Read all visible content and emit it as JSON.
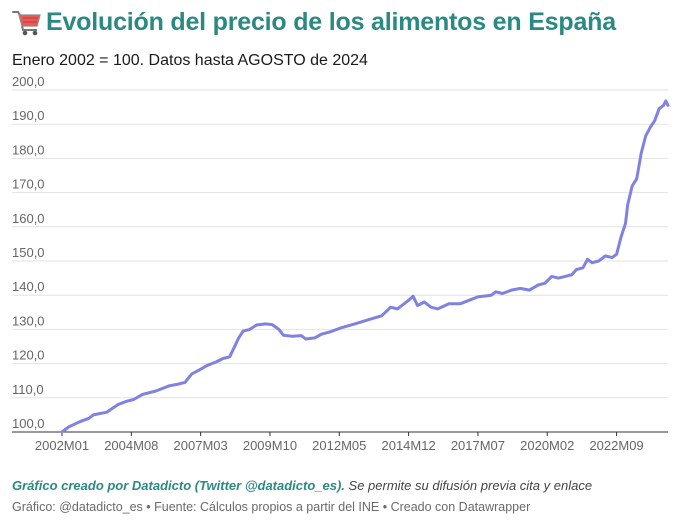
{
  "header": {
    "icon": "shopping-cart-icon",
    "title": "Evolución del precio de los alimentos en España",
    "subtitle": "Enero 2002 = 100. Datos hasta AGOSTO de 2024"
  },
  "credit": {
    "strong": "Gráfico creado por Datadicto (Twitter @datadicto_es).",
    "rest": " Se permite su difusión previa cita y enlace"
  },
  "footer": "Gráfico: @datadicto_es • Fuente: Cálculos propios a partir del INE • Creado con Datawrapper",
  "colors": {
    "line": "#7f82e0",
    "title": "#2a8a82",
    "grid": "#e2e2e2"
  },
  "chart_data": {
    "type": "line",
    "title": "Evolución del precio de los alimentos en España",
    "subtitle": "Enero 2002 = 100. Datos hasta AGOSTO de 2024",
    "ylim": [
      100,
      200
    ],
    "yticks": [
      "100,0",
      "110,0",
      "120,0",
      "130,0",
      "140,0",
      "150,0",
      "160,0",
      "170,0",
      "180,0",
      "190,0",
      "200,0"
    ],
    "xticks": [
      "2002M01",
      "2004M08",
      "2007M03",
      "2009M10",
      "2012M05",
      "2014M12",
      "2017M07",
      "2020M02",
      "2022M09"
    ],
    "x_start": "2002M01",
    "x_end": "2024M08",
    "grid": true,
    "series": [
      {
        "values": [
          {
            "x": "2002M01",
            "y": 100.0
          },
          {
            "x": "2002M04",
            "y": 101.5
          },
          {
            "x": "2002M09",
            "y": 103.0
          },
          {
            "x": "2003M01",
            "y": 104.0
          },
          {
            "x": "2003M03",
            "y": 105.0
          },
          {
            "x": "2003M09",
            "y": 105.8
          },
          {
            "x": "2004M02",
            "y": 108.0
          },
          {
            "x": "2004M06",
            "y": 109.0
          },
          {
            "x": "2004M09",
            "y": 109.5
          },
          {
            "x": "2005M01",
            "y": 111.0
          },
          {
            "x": "2005M07",
            "y": 112.0
          },
          {
            "x": "2006M01",
            "y": 113.5
          },
          {
            "x": "2006M05",
            "y": 114.0
          },
          {
            "x": "2006M08",
            "y": 114.5
          },
          {
            "x": "2006M11",
            "y": 117.0
          },
          {
            "x": "2007M02",
            "y": 118.0
          },
          {
            "x": "2007M06",
            "y": 119.5
          },
          {
            "x": "2007M10",
            "y": 120.5
          },
          {
            "x": "2008M01",
            "y": 121.5
          },
          {
            "x": "2008M04",
            "y": 122.0
          },
          {
            "x": "2008M08",
            "y": 127.5
          },
          {
            "x": "2008M10",
            "y": 129.5
          },
          {
            "x": "2009M01",
            "y": 130.0
          },
          {
            "x": "2009M04",
            "y": 131.3
          },
          {
            "x": "2009M08",
            "y": 131.6
          },
          {
            "x": "2009M11",
            "y": 131.4
          },
          {
            "x": "2010M02",
            "y": 130.0
          },
          {
            "x": "2010M04",
            "y": 128.3
          },
          {
            "x": "2010M08",
            "y": 128.0
          },
          {
            "x": "2010M12",
            "y": 128.2
          },
          {
            "x": "2011M02",
            "y": 127.2
          },
          {
            "x": "2011M06",
            "y": 127.5
          },
          {
            "x": "2011M09",
            "y": 128.6
          },
          {
            "x": "2012M01",
            "y": 129.3
          },
          {
            "x": "2012M06",
            "y": 130.5
          },
          {
            "x": "2013M01",
            "y": 131.8
          },
          {
            "x": "2013M07",
            "y": 133.0
          },
          {
            "x": "2013M12",
            "y": 134.0
          },
          {
            "x": "2014M04",
            "y": 136.5
          },
          {
            "x": "2014M07",
            "y": 136.0
          },
          {
            "x": "2014M12",
            "y": 138.5
          },
          {
            "x": "2015M02",
            "y": 139.7
          },
          {
            "x": "2015M04",
            "y": 137.0
          },
          {
            "x": "2015M07",
            "y": 138.0
          },
          {
            "x": "2015M10",
            "y": 136.5
          },
          {
            "x": "2016M01",
            "y": 136.0
          },
          {
            "x": "2016M06",
            "y": 137.5
          },
          {
            "x": "2016M11",
            "y": 137.5
          },
          {
            "x": "2017M03",
            "y": 138.5
          },
          {
            "x": "2017M07",
            "y": 139.5
          },
          {
            "x": "2018M01",
            "y": 140.0
          },
          {
            "x": "2018M03",
            "y": 141.0
          },
          {
            "x": "2018M06",
            "y": 140.5
          },
          {
            "x": "2018M10",
            "y": 141.5
          },
          {
            "x": "2019M02",
            "y": 142.0
          },
          {
            "x": "2019M06",
            "y": 141.5
          },
          {
            "x": "2019M10",
            "y": 143.0
          },
          {
            "x": "2020M01",
            "y": 143.5
          },
          {
            "x": "2020M04",
            "y": 145.5
          },
          {
            "x": "2020M07",
            "y": 145.0
          },
          {
            "x": "2020M10",
            "y": 145.5
          },
          {
            "x": "2021M01",
            "y": 146.0
          },
          {
            "x": "2021M03",
            "y": 147.5
          },
          {
            "x": "2021M06",
            "y": 148.0
          },
          {
            "x": "2021M08",
            "y": 150.5
          },
          {
            "x": "2021M10",
            "y": 149.5
          },
          {
            "x": "2022M01",
            "y": 150.0
          },
          {
            "x": "2022M04",
            "y": 151.5
          },
          {
            "x": "2022M07",
            "y": 151.0
          },
          {
            "x": "2022M09",
            "y": 152.0
          },
          {
            "x": "2022M11",
            "y": 157.0
          },
          {
            "x": "2023M01",
            "y": 161.0
          },
          {
            "x": "2023M02",
            "y": 166.5
          },
          {
            "x": "2023M04",
            "y": 172.0
          },
          {
            "x": "2023M06",
            "y": 174.0
          },
          {
            "x": "2023M08",
            "y": 181.5
          },
          {
            "x": "2023M10",
            "y": 186.5
          },
          {
            "x": "2023M12",
            "y": 189.0
          },
          {
            "x": "2024M02",
            "y": 191.0
          },
          {
            "x": "2024M04",
            "y": 194.5
          },
          {
            "x": "2024M05",
            "y": 195.0
          },
          {
            "x": "2024M06",
            "y": 195.5
          },
          {
            "x": "2024M07",
            "y": 196.8
          },
          {
            "x": "2024M08",
            "y": 195.5
          }
        ]
      }
    ]
  }
}
